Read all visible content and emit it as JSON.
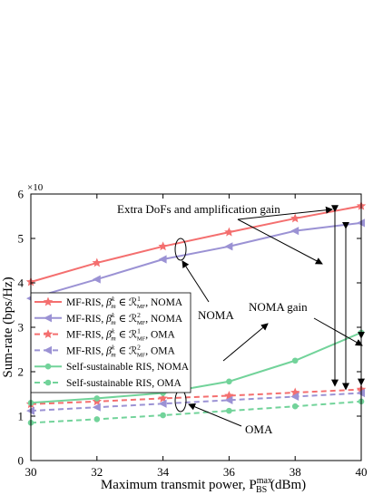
{
  "chart_data": {
    "type": "line",
    "title": "",
    "xlabel": "Maximum transmit power, P",
    "xlabel_sub": "BS",
    "xlabel_sup": "max",
    "xlabel_unit": " (dBm)",
    "ylabel": "Sum-rate (bps/Hz)",
    "y_multiplier": "×10",
    "xlim": [
      30,
      40
    ],
    "ylim": [
      0,
      6
    ],
    "x_ticks": [
      30,
      32,
      34,
      36,
      38,
      40
    ],
    "y_ticks": [
      0,
      1,
      2,
      3,
      4,
      5,
      6
    ],
    "x": [
      30,
      32,
      34,
      36,
      38,
      40
    ],
    "grid": false,
    "legend_position": "left-middle",
    "series": [
      {
        "name": "MF-RIS, β_m^k ∈ R_MF^1, NOMA",
        "legend_label": {
          "main": "MF-RIS, ",
          "beta": "β",
          "beta_sub": "m",
          "beta_sup": "k",
          "set": " ∈ ℛ",
          "set_sub": "MF",
          "set_sup": "1",
          "tail": ", NOMA"
        },
        "values": [
          4.02,
          4.45,
          4.82,
          5.14,
          5.45,
          5.73
        ],
        "color": "#f46f6f",
        "marker": "star",
        "dash": "solid"
      },
      {
        "name": "MF-RIS, β_m^k ∈ R_MF^2, NOMA",
        "legend_label": {
          "main": "MF-RIS, ",
          "beta": "β",
          "beta_sub": "m",
          "beta_sup": "k",
          "set": " ∈ ℛ",
          "set_sub": "MF",
          "set_sup": "2",
          "tail": ", NOMA"
        },
        "values": [
          3.65,
          4.08,
          4.53,
          4.82,
          5.17,
          5.35
        ],
        "color": "#9b92d4",
        "marker": "triangle-left",
        "dash": "solid"
      },
      {
        "name": "MF-RIS, β_m^k ∈ R_MF^1, OMA",
        "legend_label": {
          "main": "MF-RIS, ",
          "beta": "β",
          "beta_sub": "m",
          "beta_sup": "k",
          "set": " ∈ ℛ",
          "set_sub": "MF",
          "set_sup": "1",
          "tail": ", OMA"
        },
        "values": [
          1.27,
          1.33,
          1.4,
          1.46,
          1.53,
          1.6
        ],
        "color": "#f46f6f",
        "marker": "star",
        "dash": "dashed"
      },
      {
        "name": "MF-RIS, β_m^k ∈ R_MF^2, OMA",
        "legend_label": {
          "main": "MF-RIS, ",
          "beta": "β",
          "beta_sub": "m",
          "beta_sup": "k",
          "set": " ∈ ℛ",
          "set_sub": "MF",
          "set_sup": "2",
          "tail": ", OMA"
        },
        "values": [
          1.12,
          1.2,
          1.28,
          1.36,
          1.44,
          1.52
        ],
        "color": "#9b92d4",
        "marker": "triangle-left",
        "dash": "dashed"
      },
      {
        "name": "Self-sustainable RIS, NOMA",
        "legend_label": {
          "main": "Self-sustainable RIS, NOMA"
        },
        "values": [
          1.3,
          1.4,
          1.52,
          1.78,
          2.25,
          2.88
        ],
        "color": "#72d39a",
        "marker": "circle",
        "dash": "solid"
      },
      {
        "name": "Self-sustainable RIS, OMA",
        "legend_label": {
          "main": "Self-sustainable RIS, OMA"
        },
        "values": [
          0.85,
          0.93,
          1.02,
          1.12,
          1.22,
          1.33
        ],
        "color": "#72d39a",
        "marker": "circle",
        "dash": "dashed"
      }
    ],
    "annotations": [
      {
        "text": "Extra DoFs and amplification gain"
      },
      {
        "text": "NOMA"
      },
      {
        "text": "NOMA gain"
      },
      {
        "text": "OMA"
      }
    ]
  }
}
